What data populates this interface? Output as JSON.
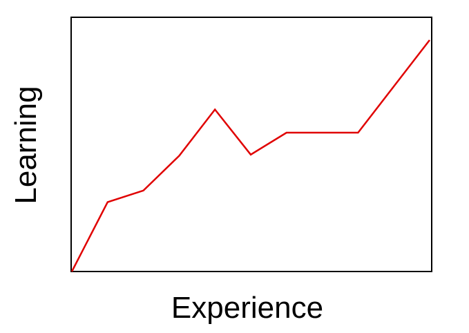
{
  "chart_data": {
    "type": "line",
    "title": "",
    "xlabel": "Experience",
    "ylabel": "Learning",
    "x": [
      0,
      1,
      2,
      3,
      4,
      5,
      6,
      7,
      8,
      9,
      10
    ],
    "series": [
      {
        "values": [
          0,
          3,
          3.5,
          5,
          7,
          5.05,
          6,
          6,
          6,
          8,
          10
        ],
        "color": "#e00000"
      }
    ],
    "xlim": [
      0,
      10
    ],
    "ylim": [
      0,
      10
    ],
    "grid": false,
    "ticks": false,
    "legend": "none"
  }
}
